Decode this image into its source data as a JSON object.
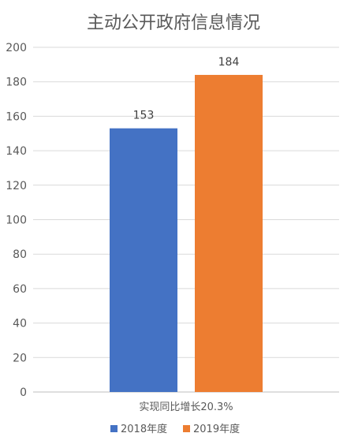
{
  "chart_data": {
    "type": "bar",
    "title": "主动公开政府信息情况",
    "categories": [
      "实现同比增长20.3%"
    ],
    "series": [
      {
        "name": "2018年度",
        "values": [
          153
        ],
        "color": "#4472c4"
      },
      {
        "name": "2019年度",
        "values": [
          184
        ],
        "color": "#ed7d31"
      }
    ],
    "ylim": [
      0,
      200
    ],
    "yticks": [
      0,
      20,
      40,
      60,
      80,
      100,
      120,
      140,
      160,
      180,
      200
    ],
    "grid": true,
    "legend_position": "bottom",
    "data_labels": true
  }
}
